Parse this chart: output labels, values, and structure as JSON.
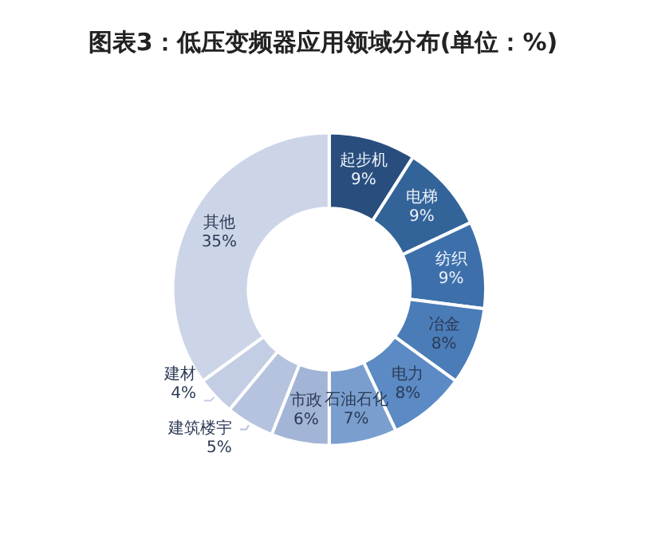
{
  "chart_data": {
    "type": "donut",
    "title": "图表3：低压变频器应用领域分布(单位：%)",
    "categories": [
      "起步机",
      "电梯",
      "纺织",
      "冶金",
      "电力",
      "石油石化",
      "市政",
      "建筑楼宇",
      "建材",
      "其他"
    ],
    "values": [
      9,
      9,
      9,
      8,
      8,
      7,
      6,
      5,
      4,
      35
    ],
    "value_labels": [
      "9%",
      "9%",
      "9%",
      "8%",
      "8%",
      "7%",
      "6%",
      "5%",
      "4%",
      "35%"
    ],
    "colors": [
      "#294e7e",
      "#336499",
      "#3d70ab",
      "#4a7cb8",
      "#5b8ac4",
      "#7a9fcf",
      "#a3b5d6",
      "#b6c3de",
      "#c3cde4",
      "#ccd5e8"
    ],
    "legend": false
  }
}
